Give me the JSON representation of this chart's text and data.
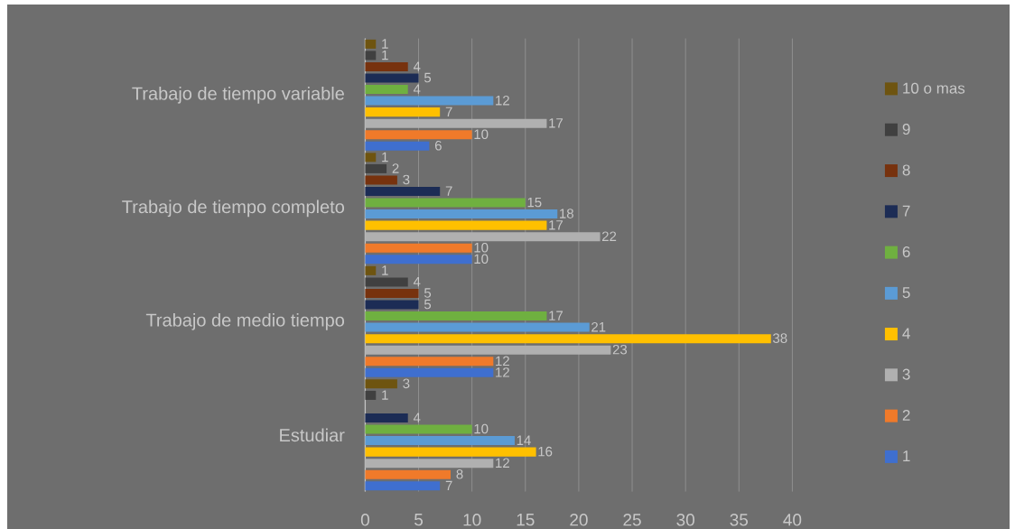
{
  "chart_data": {
    "type": "bar",
    "orientation": "horizontal",
    "categories": [
      "Trabajo de tiempo variable",
      "Trabajo de tiempo completo",
      "Trabajo de medio tiempo",
      "Estudiar"
    ],
    "series": [
      {
        "name": "1",
        "color": "#3f6fcf",
        "values": [
          6,
          10,
          12,
          7
        ]
      },
      {
        "name": "2",
        "color": "#f07a2a",
        "values": [
          10,
          10,
          12,
          8
        ]
      },
      {
        "name": "3",
        "color": "#b0b0b0",
        "values": [
          17,
          22,
          23,
          12
        ]
      },
      {
        "name": "4",
        "color": "#ffc000",
        "values": [
          7,
          17,
          38,
          16
        ]
      },
      {
        "name": "5",
        "color": "#5b9bd5",
        "values": [
          12,
          18,
          21,
          14
        ]
      },
      {
        "name": "6",
        "color": "#6fb040",
        "values": [
          4,
          15,
          17,
          10
        ]
      },
      {
        "name": "7",
        "color": "#1c2c55",
        "values": [
          5,
          7,
          5,
          4
        ]
      },
      {
        "name": "8",
        "color": "#77320e",
        "values": [
          4,
          3,
          5,
          null
        ]
      },
      {
        "name": "9",
        "color": "#404040",
        "values": [
          1,
          2,
          4,
          1
        ]
      },
      {
        "name": "10 o mas",
        "color": "#6e5410",
        "values": [
          1,
          1,
          1,
          3
        ]
      }
    ],
    "xlim": [
      0,
      40
    ],
    "xticks": [
      0,
      5,
      10,
      15,
      20,
      25,
      30,
      35,
      40
    ],
    "grid": "x",
    "legend": "right",
    "data_labels": true
  }
}
